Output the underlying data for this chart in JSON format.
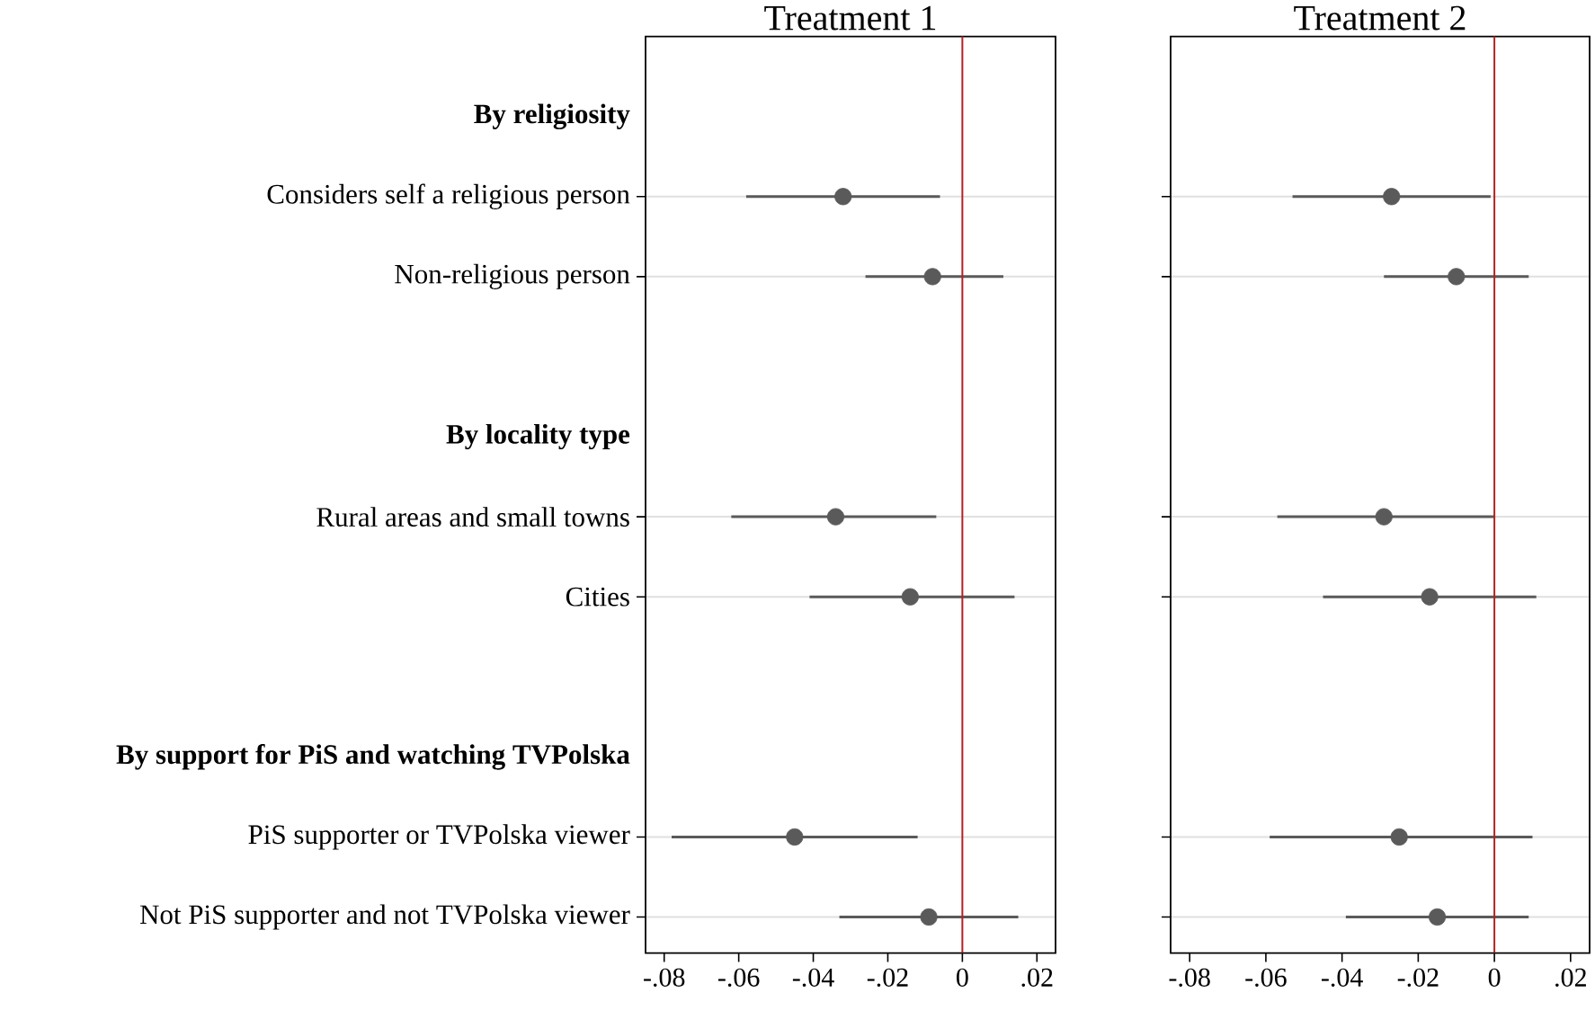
{
  "chart_data": [
    {
      "type": "scatter",
      "orientation": "horizontal",
      "title": "Treatment 1",
      "categories": [
        "By religiosity",
        "Considers self a religious person",
        "Non-religious person",
        null,
        "By locality type",
        "Rural areas and small towns",
        "Cities",
        null,
        "By support for PiS and watching TVPolska",
        "PiS supporter or TVPolska viewer",
        "Not PiS supporter and not TVPolska viewer"
      ],
      "values": [
        null,
        -0.032,
        -0.008,
        null,
        null,
        -0.034,
        -0.014,
        null,
        null,
        -0.045,
        -0.009
      ],
      "errors": [
        null,
        [
          -0.058,
          -0.006
        ],
        [
          -0.026,
          0.011
        ],
        null,
        null,
        [
          -0.062,
          -0.007
        ],
        [
          -0.041,
          0.014
        ],
        null,
        null,
        [
          -0.078,
          -0.012
        ],
        [
          -0.033,
          0.015
        ]
      ],
      "color": "#5a5a5a",
      "marker": "circle",
      "xlim": [
        -0.085,
        0.025
      ],
      "xticks": [
        {
          "value": -0.08,
          "label": "-.08"
        },
        {
          "value": -0.06,
          "label": "-.06"
        },
        {
          "value": -0.04,
          "label": "-.04"
        },
        {
          "value": -0.02,
          "label": "-.02"
        },
        0,
        {
          "value": 0.02,
          "label": ".02"
        }
      ],
      "ref_lines": [
        {
          "axis": "x",
          "value": 0,
          "color": "#b22222"
        }
      ],
      "grid": "y"
    },
    {
      "type": "scatter",
      "orientation": "horizontal",
      "title": "Treatment 2",
      "categories": [
        null,
        null,
        null,
        null,
        null,
        null,
        null,
        null,
        null,
        null,
        null
      ],
      "values": [
        null,
        -0.027,
        -0.01,
        null,
        null,
        -0.029,
        -0.017,
        null,
        null,
        -0.025,
        -0.015
      ],
      "errors": [
        null,
        [
          -0.053,
          -0.001
        ],
        [
          -0.029,
          0.009
        ],
        null,
        null,
        [
          -0.057,
          0.0
        ],
        [
          -0.045,
          0.011
        ],
        null,
        null,
        [
          -0.059,
          0.01
        ],
        [
          -0.039,
          0.009
        ]
      ],
      "color": "#5a5a5a",
      "marker": "circle",
      "xlim": [
        -0.085,
        0.025
      ],
      "xticks": [
        {
          "value": -0.08,
          "label": "-.08"
        },
        {
          "value": -0.06,
          "label": "-.06"
        },
        {
          "value": -0.04,
          "label": "-.04"
        },
        {
          "value": -0.02,
          "label": "-.02"
        },
        0,
        {
          "value": 0.02,
          "label": ".02"
        }
      ],
      "ref_lines": [
        {
          "axis": "x",
          "value": 0,
          "color": "#b22222"
        }
      ],
      "grid": "y",
      "tick_labels": "x"
    }
  ]
}
